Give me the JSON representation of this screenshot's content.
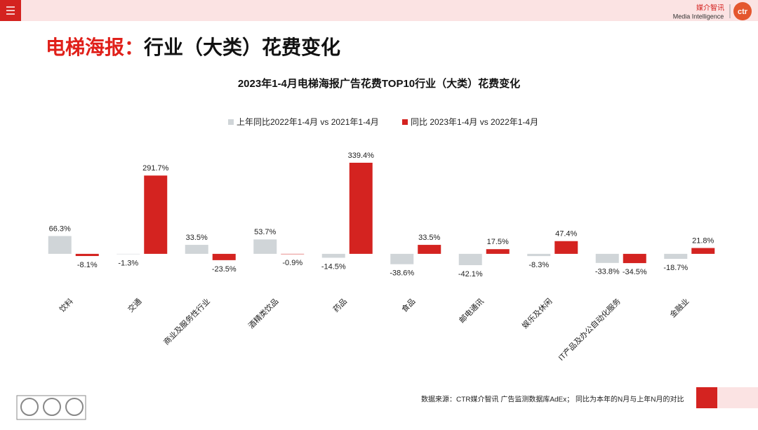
{
  "header": {
    "logo_cn": "媒介智讯",
    "logo_en": "Media Intelligence",
    "logo_mark": "ctr",
    "title_highlight": "电梯海报：",
    "title": "行业（大类）花费变化"
  },
  "chart_data": {
    "type": "bar",
    "title": "2023年1-4月电梯海报广告花费TOP10行业（大类）花费变化",
    "categories": [
      "饮料",
      "交通",
      "商业及服务性行业",
      "酒精类饮品",
      "药品",
      "食品",
      "邮电通讯",
      "娱乐及休闲",
      "IT产品及办公自动化服务",
      "金融业"
    ],
    "series": [
      {
        "name": "上年同比2022年1-4月 vs 2021年1-4月",
        "color": "#d0d5d8",
        "values": [
          66.3,
          -1.3,
          33.5,
          53.7,
          -14.5,
          -38.6,
          -42.1,
          -8.3,
          -33.8,
          -18.7
        ],
        "value_labels": [
          "66.3%",
          "-1.3%",
          "33.5%",
          "53.7%",
          "-14.5%",
          "-38.6%",
          "-42.1%",
          "-8.3%",
          "-33.8%",
          "-18.7%"
        ]
      },
      {
        "name": "同比 2023年1-4月 vs 2022年1-4月",
        "color": "#d42320",
        "values": [
          -8.1,
          291.7,
          -23.5,
          -0.9,
          339.4,
          33.5,
          17.5,
          47.4,
          -34.5,
          21.8
        ],
        "value_labels": [
          "-8.1%",
          "291.7%",
          "-23.5%",
          "-0.9%",
          "339.4%",
          "33.5%",
          "17.5%",
          "47.4%",
          "-34.5%",
          "21.8%"
        ]
      }
    ],
    "legend": "top"
  },
  "footer": {
    "source": "数据来源：CTR媒介智讯 广告监测数据库AdEx；  同比为本年的N月与上年N月的对比"
  }
}
